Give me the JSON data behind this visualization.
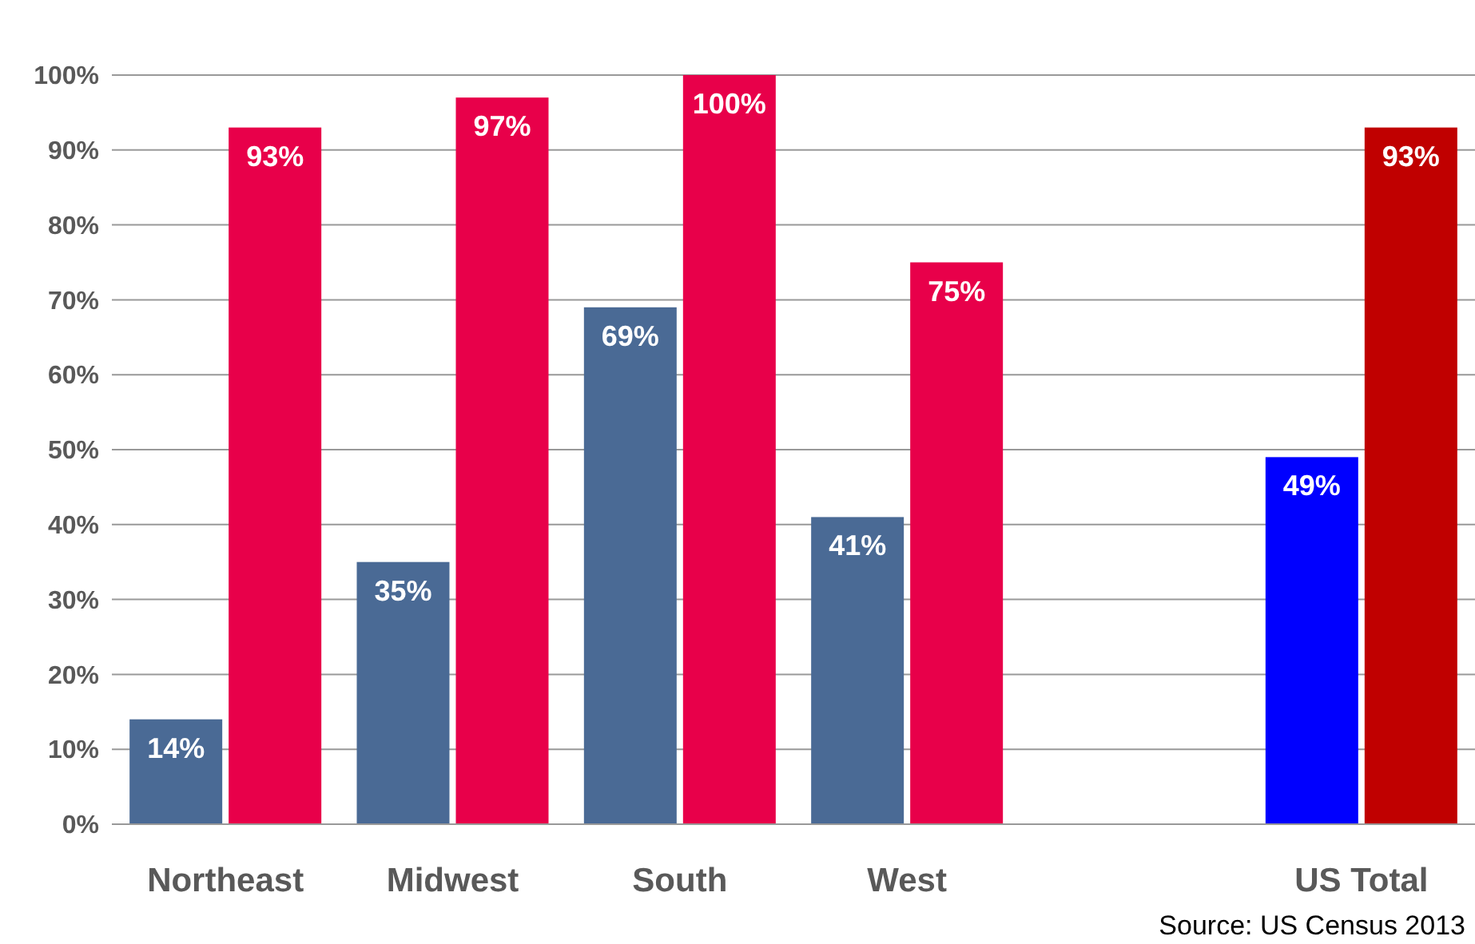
{
  "chart_data": {
    "type": "bar",
    "categories": [
      "Northeast",
      "Midwest",
      "South",
      "West",
      null,
      "US Total"
    ],
    "series": [
      {
        "colors": [
          "#4a6a95",
          "#4a6a95",
          "#4a6a95",
          "#4a6a95",
          null,
          "#0000ff"
        ],
        "values": [
          14,
          35,
          69,
          41,
          null,
          49
        ],
        "value_labels": [
          "14%",
          "35%",
          "69%",
          "41%",
          null,
          "49%"
        ]
      },
      {
        "colors": [
          "#e8004a",
          "#e8004a",
          "#e8004a",
          "#e8004a",
          null,
          "#c00000"
        ],
        "values": [
          93,
          97,
          100,
          75,
          null,
          93
        ],
        "value_labels": [
          "93%",
          "97%",
          "100%",
          "75%",
          null,
          "93%"
        ]
      }
    ],
    "ylim": [
      0,
      100
    ],
    "yticks": [
      {
        "value": 0,
        "label": "0%"
      },
      {
        "value": 10,
        "label": "10%"
      },
      {
        "value": 20,
        "label": "20%"
      },
      {
        "value": 30,
        "label": "30%"
      },
      {
        "value": 40,
        "label": "40%"
      },
      {
        "value": 50,
        "label": "50%"
      },
      {
        "value": 60,
        "label": "60%"
      },
      {
        "value": 70,
        "label": "70%"
      },
      {
        "value": 80,
        "label": "80%"
      },
      {
        "value": 90,
        "label": "90%"
      },
      {
        "value": 100,
        "label": "100%"
      }
    ],
    "grid": "y",
    "annotations": [
      "Source: US Census 2013"
    ]
  }
}
